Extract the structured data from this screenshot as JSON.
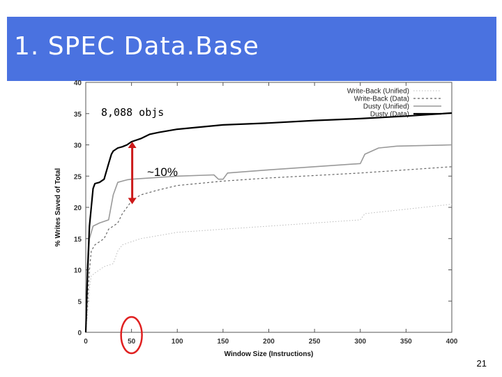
{
  "slide": {
    "title": "1. SPEC Data.Base",
    "page_number": "21",
    "colors": {
      "title_bar": "#4a72e0",
      "highlight": "#e02020",
      "arrow": "#cc1a1a"
    }
  },
  "annotations": {
    "objs_label": "8,088 objs",
    "delta_label": "~10%",
    "arrow_from_y": 30.5,
    "arrow_to_y": 20.5,
    "arrow_x": 50,
    "circled_tick": 50
  },
  "chart_data": {
    "type": "line",
    "title": "",
    "xlabel": "Window Size (Instructions)",
    "ylabel": "% Writes Saved of Total",
    "xlim": [
      0,
      400
    ],
    "ylim": [
      0,
      40
    ],
    "xticks": [
      0,
      50,
      100,
      150,
      200,
      250,
      300,
      350,
      400
    ],
    "yticks": [
      0,
      5,
      10,
      15,
      20,
      25,
      30,
      35,
      40
    ],
    "grid": false,
    "legend_position": "top-right",
    "series": [
      {
        "name": "Write-Back (Unified)",
        "style": "dotted-light-gray",
        "x": [
          0,
          2,
          4,
          6,
          10,
          20,
          30,
          35,
          40,
          50,
          60,
          80,
          100,
          150,
          200,
          250,
          300,
          305,
          350,
          400
        ],
        "y": [
          0,
          3,
          7,
          9,
          9.5,
          10.5,
          11,
          13,
          14,
          14.5,
          15,
          15.5,
          16,
          16.5,
          17,
          17.5,
          18,
          19,
          19.7,
          20.5
        ]
      },
      {
        "name": "Write-Back (Data)",
        "style": "dashed-gray",
        "x": [
          0,
          2,
          4,
          6,
          10,
          20,
          25,
          30,
          35,
          40,
          45,
          50,
          60,
          80,
          100,
          150,
          200,
          250,
          300,
          350,
          400
        ],
        "y": [
          0,
          5,
          10,
          13,
          14,
          15,
          16.5,
          17,
          17.5,
          19,
          20,
          21,
          22,
          22.8,
          23.5,
          24.2,
          24.7,
          25.1,
          25.5,
          26,
          26.5
        ]
      },
      {
        "name": "Dusty (Unified)",
        "style": "solid-gray",
        "x": [
          0,
          2,
          4,
          8,
          15,
          25,
          30,
          35,
          40,
          45,
          50,
          100,
          140,
          145,
          150,
          155,
          200,
          300,
          305,
          320,
          340,
          400
        ],
        "y": [
          0,
          8,
          15,
          17,
          17.5,
          18,
          22,
          24,
          24.2,
          24.4,
          24.5,
          25,
          25.2,
          24.5,
          24.5,
          25.5,
          26,
          27,
          28.5,
          29.5,
          29.8,
          30
        ]
      },
      {
        "name": "Dusty (Data)",
        "style": "solid-black",
        "x": [
          0,
          2,
          4,
          6,
          8,
          10,
          15,
          20,
          25,
          28,
          30,
          35,
          40,
          45,
          50,
          60,
          70,
          80,
          100,
          150,
          200,
          250,
          300,
          350,
          400
        ],
        "y": [
          0,
          10,
          17,
          20,
          23,
          23.8,
          24,
          24.5,
          27,
          28.5,
          29,
          29.5,
          29.7,
          30,
          30.5,
          31,
          31.7,
          32,
          32.5,
          33.2,
          33.5,
          33.9,
          34.2,
          34.6,
          35.1
        ]
      }
    ]
  }
}
